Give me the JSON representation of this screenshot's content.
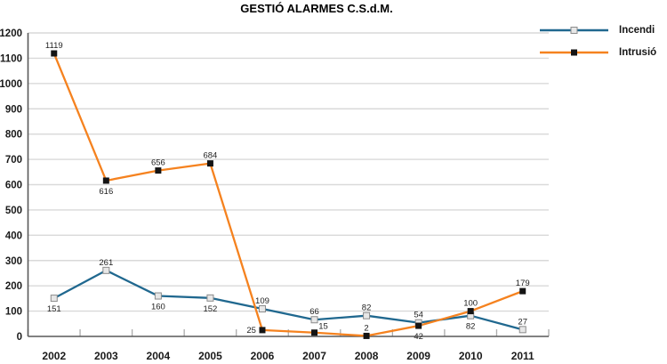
{
  "colors": {
    "incendi_line": "#20688F",
    "intrusio_line": "#F5821F",
    "gridline": "#D9D9D9",
    "axis": "#595959",
    "tick": "#ABABAB",
    "data_label": "#1F1F1F",
    "axis_label": "#1A1A1A",
    "marker_light_fill": "#E7E7E7",
    "marker_light_stroke": "#8B8B8B",
    "marker_black_fill": "#141414"
  },
  "chart_data": {
    "type": "line",
    "title": "GESTIÓ ALARMES C.S.d.M.",
    "categories": [
      "2002",
      "2003",
      "2004",
      "2005",
      "2006",
      "2007",
      "2008",
      "2009",
      "2010",
      "2011"
    ],
    "y_ticks": [
      0,
      100,
      200,
      300,
      400,
      500,
      600,
      700,
      800,
      900,
      1000,
      1100,
      1200
    ],
    "ylim": [
      0,
      1200
    ],
    "ytick_step": 100,
    "grid": true,
    "legend_position": "top-right",
    "xlabel": "",
    "ylabel": "",
    "series": [
      {
        "name": "Incendi",
        "color": "#20688F",
        "marker": "light-square",
        "values": [
          151,
          261,
          160,
          152,
          109,
          66,
          82,
          54,
          82,
          27
        ],
        "label_side": [
          "below",
          "above",
          "below",
          "below",
          "above",
          "above",
          "above",
          "above",
          "below",
          "above"
        ]
      },
      {
        "name": "Intrusió",
        "color": "#F5821F",
        "marker": "black-square",
        "values": [
          1119,
          616,
          656,
          684,
          25,
          15,
          2,
          42,
          100,
          179
        ],
        "label_side": [
          "above",
          "below",
          "above",
          "above",
          "left",
          "above-right",
          "above",
          "below",
          "above",
          "above"
        ]
      }
    ]
  }
}
